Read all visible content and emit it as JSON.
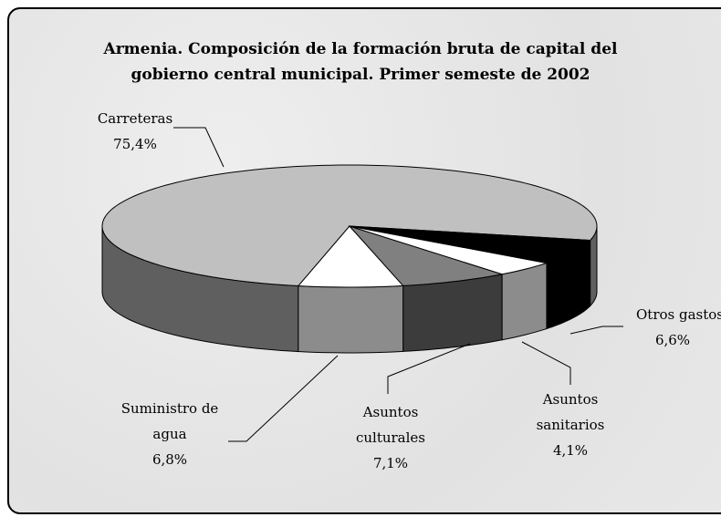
{
  "chart_data": {
    "type": "pie",
    "title": "Armenia. Composición de la formación bruta de capital del gobierno central municipal. Primer semeste de 2002",
    "categories": [
      "Carreteras",
      "Suministro de agua",
      "Asuntos culturales",
      "Asuntos sanitarios",
      "Otros gastos"
    ],
    "values": [
      75.4,
      6.8,
      7.1,
      4.1,
      6.6
    ],
    "value_labels": [
      "75,4%",
      "6,8%",
      "7,1%",
      "4,1%",
      "6,6%"
    ],
    "colors": [
      "#c0c0c0",
      "#ffffff",
      "#808080",
      "#ffffff",
      "#000000"
    ],
    "side_colors": [
      "#5f5f5f",
      "#8c8c8c",
      "#3c3c3c",
      "#8c8c8c",
      "#000000"
    ]
  }
}
